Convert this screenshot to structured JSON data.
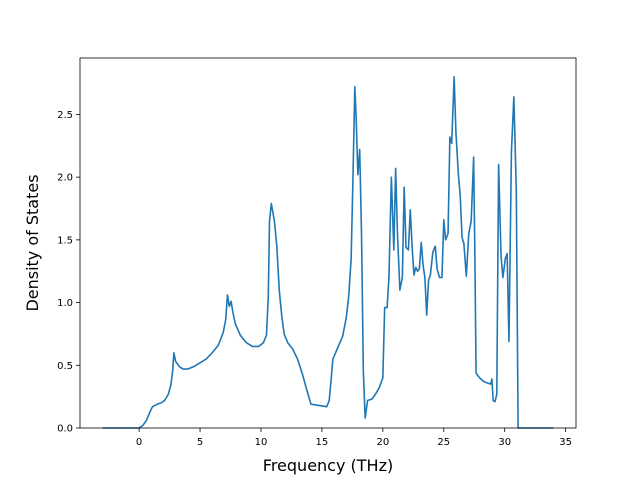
{
  "chart_data": {
    "type": "line",
    "title": "",
    "xlabel": "Frequency (THz)",
    "ylabel": "Density of States",
    "xlim": [
      -4.85,
      35.85
    ],
    "ylim": [
      0.0,
      2.95
    ],
    "xticks": [
      0,
      5,
      10,
      15,
      20,
      25,
      30,
      35
    ],
    "xtick_labels": [
      "0",
      "5",
      "10",
      "15",
      "20",
      "25",
      "30",
      "35"
    ],
    "yticks": [
      0.0,
      0.5,
      1.0,
      1.5,
      2.0,
      2.5
    ],
    "ytick_labels": [
      "0.0",
      "0.5",
      "1.0",
      "1.5",
      "2.0",
      "2.5"
    ],
    "grid": false,
    "series": [
      {
        "color": "#1f77b4",
        "points": [
          [
            -3.0,
            0.0
          ],
          [
            0.0,
            0.0
          ],
          [
            0.3,
            0.02
          ],
          [
            0.6,
            0.06
          ],
          [
            0.9,
            0.13
          ],
          [
            1.1,
            0.17
          ],
          [
            1.3,
            0.18
          ],
          [
            1.5,
            0.19
          ],
          [
            1.8,
            0.2
          ],
          [
            2.1,
            0.22
          ],
          [
            2.4,
            0.27
          ],
          [
            2.6,
            0.34
          ],
          [
            2.75,
            0.45
          ],
          [
            2.85,
            0.6
          ],
          [
            3.0,
            0.53
          ],
          [
            3.3,
            0.49
          ],
          [
            3.6,
            0.47
          ],
          [
            4.0,
            0.47
          ],
          [
            4.5,
            0.49
          ],
          [
            5.0,
            0.52
          ],
          [
            5.5,
            0.55
          ],
          [
            6.0,
            0.6
          ],
          [
            6.5,
            0.66
          ],
          [
            6.9,
            0.76
          ],
          [
            7.1,
            0.86
          ],
          [
            7.25,
            1.06
          ],
          [
            7.4,
            0.97
          ],
          [
            7.55,
            1.01
          ],
          [
            7.7,
            0.92
          ],
          [
            7.9,
            0.83
          ],
          [
            8.3,
            0.74
          ],
          [
            8.8,
            0.68
          ],
          [
            9.3,
            0.65
          ],
          [
            9.8,
            0.65
          ],
          [
            10.2,
            0.68
          ],
          [
            10.45,
            0.74
          ],
          [
            10.6,
            1.05
          ],
          [
            10.7,
            1.65
          ],
          [
            10.85,
            1.79
          ],
          [
            11.1,
            1.65
          ],
          [
            11.3,
            1.45
          ],
          [
            11.5,
            1.1
          ],
          [
            11.7,
            0.9
          ],
          [
            11.9,
            0.75
          ],
          [
            12.2,
            0.68
          ],
          [
            12.6,
            0.63
          ],
          [
            13.0,
            0.55
          ],
          [
            13.4,
            0.43
          ],
          [
            13.8,
            0.29
          ],
          [
            14.1,
            0.19
          ],
          [
            15.4,
            0.17
          ],
          [
            15.6,
            0.22
          ],
          [
            15.75,
            0.38
          ],
          [
            15.9,
            0.55
          ],
          [
            16.3,
            0.64
          ],
          [
            16.7,
            0.73
          ],
          [
            17.0,
            0.88
          ],
          [
            17.2,
            1.05
          ],
          [
            17.4,
            1.35
          ],
          [
            17.55,
            2.0
          ],
          [
            17.7,
            2.72
          ],
          [
            17.8,
            2.5
          ],
          [
            17.95,
            2.02
          ],
          [
            18.1,
            2.22
          ],
          [
            18.25,
            1.55
          ],
          [
            18.4,
            0.45
          ],
          [
            18.55,
            0.08
          ],
          [
            18.75,
            0.22
          ],
          [
            19.1,
            0.23
          ],
          [
            19.4,
            0.27
          ],
          [
            19.7,
            0.32
          ],
          [
            20.0,
            0.4
          ],
          [
            20.15,
            0.96
          ],
          [
            20.35,
            0.96
          ],
          [
            20.5,
            1.2
          ],
          [
            20.7,
            2.0
          ],
          [
            20.9,
            1.42
          ],
          [
            21.05,
            2.07
          ],
          [
            21.2,
            1.55
          ],
          [
            21.4,
            1.1
          ],
          [
            21.6,
            1.2
          ],
          [
            21.75,
            1.92
          ],
          [
            21.9,
            1.44
          ],
          [
            22.1,
            1.42
          ],
          [
            22.25,
            1.74
          ],
          [
            22.4,
            1.45
          ],
          [
            22.55,
            1.22
          ],
          [
            22.7,
            1.28
          ],
          [
            22.85,
            1.25
          ],
          [
            23.0,
            1.27
          ],
          [
            23.15,
            1.48
          ],
          [
            23.3,
            1.3
          ],
          [
            23.45,
            1.2
          ],
          [
            23.6,
            0.9
          ],
          [
            23.75,
            1.18
          ],
          [
            23.9,
            1.22
          ],
          [
            24.1,
            1.4
          ],
          [
            24.3,
            1.45
          ],
          [
            24.45,
            1.27
          ],
          [
            24.65,
            1.2
          ],
          [
            24.85,
            1.2
          ],
          [
            25.0,
            1.66
          ],
          [
            25.15,
            1.5
          ],
          [
            25.35,
            1.55
          ],
          [
            25.5,
            2.32
          ],
          [
            25.65,
            2.27
          ],
          [
            25.85,
            2.8
          ],
          [
            26.0,
            2.35
          ],
          [
            26.2,
            2.02
          ],
          [
            26.35,
            1.85
          ],
          [
            26.5,
            1.52
          ],
          [
            26.65,
            1.47
          ],
          [
            26.85,
            1.21
          ],
          [
            27.05,
            1.55
          ],
          [
            27.25,
            1.65
          ],
          [
            27.45,
            2.16
          ],
          [
            27.55,
            1.4
          ],
          [
            27.65,
            0.44
          ],
          [
            27.85,
            0.41
          ],
          [
            28.05,
            0.39
          ],
          [
            28.3,
            0.37
          ],
          [
            28.55,
            0.36
          ],
          [
            28.85,
            0.35
          ],
          [
            28.95,
            0.39
          ],
          [
            29.05,
            0.22
          ],
          [
            29.2,
            0.21
          ],
          [
            29.35,
            0.27
          ],
          [
            29.5,
            2.1
          ],
          [
            29.7,
            1.37
          ],
          [
            29.85,
            1.2
          ],
          [
            30.05,
            1.35
          ],
          [
            30.2,
            1.39
          ],
          [
            30.35,
            0.69
          ],
          [
            30.55,
            2.2
          ],
          [
            30.75,
            2.64
          ],
          [
            30.95,
            1.9
          ],
          [
            31.1,
            0.0
          ],
          [
            34.0,
            0.0
          ]
        ]
      }
    ]
  }
}
